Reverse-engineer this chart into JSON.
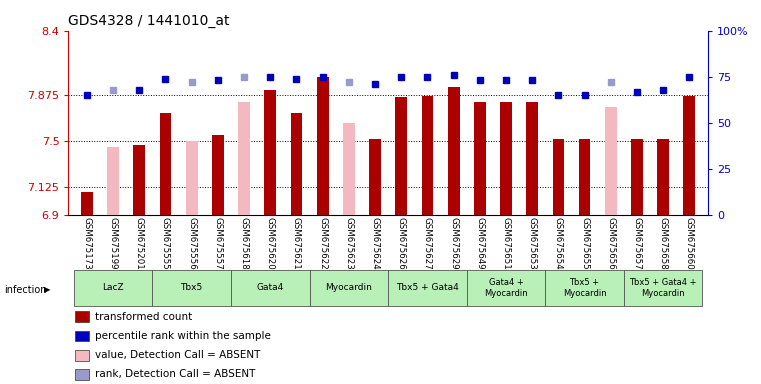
{
  "title": "GDS4328 / 1441010_at",
  "samples": [
    "GSM675173",
    "GSM675199",
    "GSM675201",
    "GSM675555",
    "GSM675556",
    "GSM675557",
    "GSM675618",
    "GSM675620",
    "GSM675621",
    "GSM675622",
    "GSM675623",
    "GSM675624",
    "GSM675626",
    "GSM675627",
    "GSM675629",
    "GSM675649",
    "GSM675651",
    "GSM675653",
    "GSM675654",
    "GSM675655",
    "GSM675656",
    "GSM675657",
    "GSM675658",
    "GSM675660"
  ],
  "transformed_count": [
    7.09,
    null,
    7.47,
    7.73,
    null,
    7.55,
    null,
    7.92,
    7.73,
    8.02,
    null,
    7.52,
    7.86,
    7.87,
    7.94,
    7.82,
    7.82,
    7.82,
    7.52,
    7.52,
    null,
    7.52,
    7.52,
    7.87
  ],
  "absent_value": [
    null,
    7.45,
    null,
    null,
    7.5,
    null,
    7.82,
    null,
    null,
    null,
    7.65,
    null,
    null,
    null,
    null,
    null,
    null,
    null,
    null,
    null,
    7.78,
    null,
    null,
    null
  ],
  "percentile_rank": [
    65,
    68,
    68,
    74,
    72,
    73,
    75,
    75,
    74,
    75,
    72,
    71,
    75,
    75,
    76,
    73,
    73,
    73,
    65,
    65,
    72,
    67,
    68,
    75
  ],
  "rank_absent_flag": [
    false,
    true,
    false,
    false,
    true,
    false,
    true,
    false,
    false,
    false,
    true,
    false,
    false,
    false,
    false,
    false,
    false,
    false,
    false,
    false,
    true,
    false,
    false,
    false
  ],
  "ylim": [
    6.9,
    8.4
  ],
  "yticks": [
    6.9,
    7.125,
    7.5,
    7.875,
    8.4
  ],
  "ytick_labels": [
    "6.9",
    "7.125",
    "7.5",
    "7.875",
    "8.4"
  ],
  "right_yticks": [
    0,
    25,
    50,
    75,
    100
  ],
  "right_ytick_labels": [
    "0",
    "25",
    "50",
    "75",
    "100%"
  ],
  "groups": [
    {
      "label": "LacZ",
      "start": 0,
      "end": 3
    },
    {
      "label": "Tbx5",
      "start": 3,
      "end": 6
    },
    {
      "label": "Gata4",
      "start": 6,
      "end": 9
    },
    {
      "label": "Myocardin",
      "start": 9,
      "end": 12
    },
    {
      "label": "Tbx5 + Gata4",
      "start": 12,
      "end": 15
    },
    {
      "label": "Gata4 +\nMyocardin",
      "start": 15,
      "end": 18
    },
    {
      "label": "Tbx5 +\nMyocardin",
      "start": 18,
      "end": 21
    },
    {
      "label": "Tbx5 + Gata4 +\nMyocardin",
      "start": 21,
      "end": 24
    }
  ],
  "bar_color_present": "#aa0000",
  "bar_color_absent": "#f4b8c0",
  "dot_color_present": "#0000bb",
  "dot_color_absent": "#9999cc",
  "bar_width": 0.45,
  "infection_label": "infection",
  "legend_items": [
    {
      "color": "#aa0000",
      "label": "transformed count"
    },
    {
      "color": "#0000bb",
      "label": "percentile rank within the sample"
    },
    {
      "color": "#f4b8c0",
      "label": "value, Detection Call = ABSENT"
    },
    {
      "color": "#9999cc",
      "label": "rank, Detection Call = ABSENT"
    }
  ],
  "background_color": "#ffffff",
  "xticklabel_bg": "#cccccc",
  "group_color": "#b8f0b8"
}
